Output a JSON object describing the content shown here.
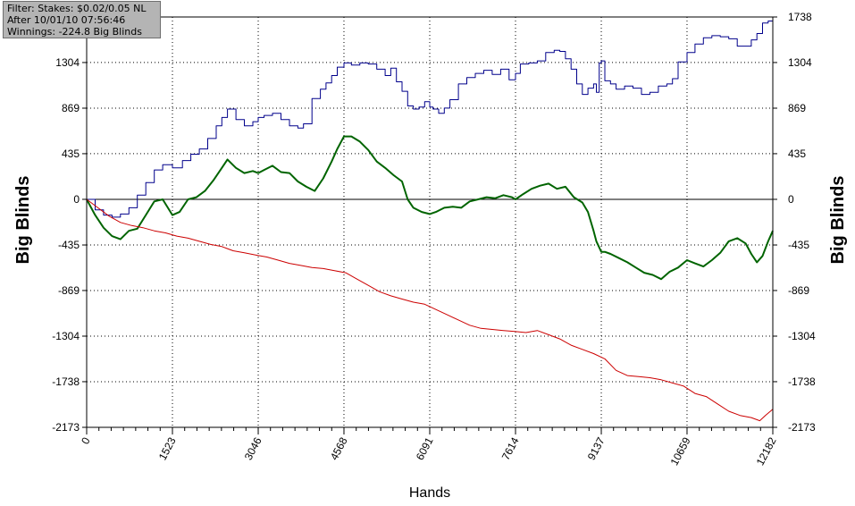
{
  "info_box": {
    "filter": "Filter: Stakes: $0.02/0.05 NL",
    "after": "After 10/01/10 07:56:46",
    "winnings": "Winnings: -224.8 Big Blinds"
  },
  "colors": {
    "winnings": "#00008b",
    "net": "#006400",
    "showdown": "#cc0000",
    "zero_line": "#000000",
    "grid": "#000000"
  },
  "chart_data": {
    "type": "line",
    "xlabel": "Hands",
    "ylabel_left": "Big Blinds",
    "ylabel_right": "Big Blinds",
    "xlim": [
      0,
      12182
    ],
    "ylim": [
      -2173,
      1738
    ],
    "x_ticks": [
      0,
      1523,
      3046,
      4568,
      6091,
      7614,
      9137,
      10659,
      12182
    ],
    "y_ticks": [
      -2173,
      -1738,
      -1304,
      -869,
      -435,
      0,
      435,
      869,
      1304,
      1738
    ],
    "grid": true,
    "series": [
      {
        "key": "winnings",
        "x": [
          0,
          150,
          300,
          450,
          600,
          750,
          900,
          1050,
          1200,
          1350,
          1523,
          1700,
          1850,
          2000,
          2150,
          2300,
          2400,
          2500,
          2650,
          2800,
          2950,
          3046,
          3150,
          3300,
          3450,
          3600,
          3750,
          3850,
          4000,
          4150,
          4250,
          4350,
          4450,
          4568,
          4700,
          4850,
          5000,
          5150,
          5300,
          5400,
          5500,
          5600,
          5700,
          5800,
          5900,
          6000,
          6091,
          6150,
          6250,
          6350,
          6450,
          6600,
          6750,
          6900,
          7050,
          7200,
          7350,
          7500,
          7614,
          7700,
          7850,
          8000,
          8150,
          8300,
          8400,
          8500,
          8600,
          8700,
          8800,
          8900,
          9000,
          9050,
          9100,
          9137,
          9200,
          9300,
          9400,
          9550,
          9700,
          9850,
          10000,
          10150,
          10300,
          10400,
          10500,
          10659,
          10800,
          10950,
          11100,
          11250,
          11400,
          11550,
          11700,
          11800,
          11900,
          12000,
          12100,
          12182
        ],
        "y": [
          0,
          -100,
          -150,
          -170,
          -140,
          -80,
          40,
          160,
          280,
          330,
          300,
          370,
          430,
          480,
          580,
          700,
          780,
          860,
          760,
          700,
          740,
          780,
          800,
          820,
          760,
          700,
          680,
          720,
          960,
          1050,
          1110,
          1180,
          1260,
          1300,
          1280,
          1300,
          1290,
          1240,
          1180,
          1250,
          1120,
          1030,
          890,
          860,
          880,
          930,
          880,
          860,
          820,
          870,
          950,
          1100,
          1160,
          1200,
          1230,
          1190,
          1240,
          1140,
          1200,
          1290,
          1300,
          1320,
          1400,
          1420,
          1410,
          1340,
          1240,
          1100,
          1000,
          1060,
          1100,
          1020,
          1300,
          1320,
          1130,
          1100,
          1050,
          1080,
          1060,
          1000,
          1020,
          1080,
          1100,
          1150,
          1310,
          1400,
          1480,
          1540,
          1560,
          1550,
          1530,
          1460,
          1460,
          1520,
          1580,
          1680,
          1700,
          1738
        ]
      },
      {
        "key": "net",
        "x": [
          0,
          150,
          300,
          450,
          600,
          750,
          900,
          1050,
          1200,
          1350,
          1523,
          1650,
          1800,
          1950,
          2100,
          2250,
          2400,
          2500,
          2650,
          2800,
          2950,
          3046,
          3150,
          3300,
          3450,
          3600,
          3750,
          3900,
          4050,
          4200,
          4350,
          4450,
          4568,
          4700,
          4850,
          5000,
          5150,
          5300,
          5450,
          5600,
          5700,
          5800,
          5950,
          6091,
          6200,
          6350,
          6500,
          6650,
          6800,
          6950,
          7100,
          7250,
          7400,
          7550,
          7614,
          7750,
          7900,
          8050,
          8200,
          8350,
          8500,
          8650,
          8800,
          8900,
          9000,
          9050,
          9137,
          9200,
          9300,
          9450,
          9600,
          9750,
          9900,
          10050,
          10200,
          10350,
          10500,
          10659,
          10800,
          10950,
          11100,
          11250,
          11400,
          11550,
          11700,
          11800,
          11900,
          12000,
          12100,
          12182
        ],
        "y": [
          0,
          -150,
          -270,
          -350,
          -380,
          -300,
          -280,
          -150,
          -20,
          0,
          -150,
          -120,
          0,
          20,
          80,
          180,
          300,
          380,
          300,
          250,
          270,
          250,
          280,
          320,
          260,
          250,
          170,
          120,
          80,
          200,
          360,
          480,
          600,
          600,
          550,
          470,
          360,
          300,
          230,
          170,
          0,
          -80,
          -120,
          -140,
          -120,
          -80,
          -70,
          -80,
          -20,
          0,
          20,
          10,
          40,
          20,
          0,
          50,
          100,
          130,
          150,
          100,
          120,
          20,
          -30,
          -120,
          -300,
          -400,
          -500,
          -500,
          -520,
          -560,
          -600,
          -650,
          -700,
          -720,
          -760,
          -690,
          -650,
          -580,
          -610,
          -640,
          -580,
          -510,
          -400,
          -370,
          -420,
          -520,
          -600,
          -540,
          -400,
          -300
        ]
      },
      {
        "key": "showdown",
        "x": [
          0,
          200,
          400,
          600,
          800,
          1000,
          1200,
          1400,
          1600,
          1800,
          2000,
          2200,
          2400,
          2600,
          2800,
          3000,
          3200,
          3400,
          3600,
          3800,
          4000,
          4200,
          4400,
          4600,
          4800,
          5000,
          5200,
          5400,
          5600,
          5800,
          6000,
          6200,
          6400,
          6600,
          6800,
          7000,
          7200,
          7400,
          7600,
          7800,
          8000,
          8200,
          8400,
          8600,
          8800,
          9000,
          9200,
          9400,
          9600,
          9800,
          10000,
          10200,
          10400,
          10600,
          10800,
          11000,
          11200,
          11400,
          11600,
          11800,
          11950,
          12050,
          12182
        ],
        "y": [
          0,
          -80,
          -160,
          -220,
          -250,
          -270,
          -300,
          -320,
          -350,
          -370,
          -400,
          -430,
          -450,
          -490,
          -510,
          -530,
          -550,
          -580,
          -610,
          -630,
          -650,
          -660,
          -680,
          -700,
          -760,
          -820,
          -880,
          -920,
          -950,
          -980,
          -1000,
          -1050,
          -1100,
          -1150,
          -1200,
          -1230,
          -1240,
          -1250,
          -1260,
          -1270,
          -1250,
          -1290,
          -1330,
          -1390,
          -1430,
          -1470,
          -1520,
          -1630,
          -1680,
          -1690,
          -1700,
          -1720,
          -1750,
          -1780,
          -1850,
          -1880,
          -1950,
          -2020,
          -2060,
          -2080,
          -2110,
          -2060,
          -2000
        ]
      }
    ]
  }
}
